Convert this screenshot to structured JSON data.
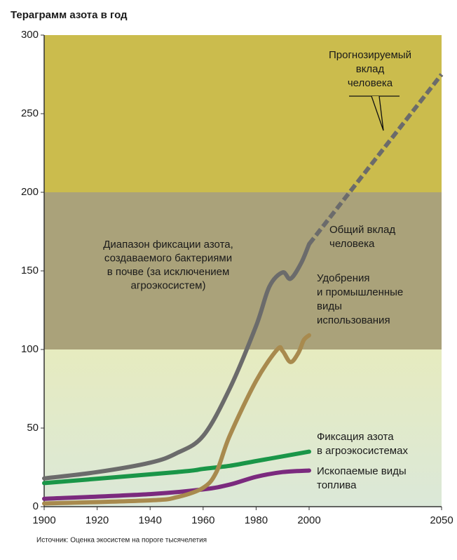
{
  "chart_data": {
    "type": "line",
    "title": "Тераграмм азота в год",
    "source": "Источник: Оценка экосистем на пороге тысячелетия",
    "xlim": [
      1900,
      2050
    ],
    "xticks": [
      1900,
      1920,
      1940,
      1960,
      1980,
      2000,
      2050
    ],
    "ylim": [
      0,
      300
    ],
    "yticks": [
      0,
      50,
      100,
      150,
      200,
      250,
      300
    ],
    "band": {
      "label": [
        "Диапазон фиксации азота,",
        "создаваемого бактериями",
        "в почве (за исключением",
        "агроэкосистем)"
      ],
      "range": [
        100,
        200
      ],
      "color": "#aaa27a"
    },
    "series": [
      {
        "name": [
          "Общий вклад",
          "человека"
        ],
        "color": "#6b6b6b",
        "x": [
          1900,
          1920,
          1940,
          1950,
          1960,
          1970,
          1980,
          1985,
          1990,
          1993,
          1997,
          2000
        ],
        "values": [
          18,
          22,
          28,
          34,
          45,
          75,
          115,
          140,
          149,
          145,
          155,
          167
        ]
      },
      {
        "name": [
          "Прогнозируемый",
          "вклад",
          "человека"
        ],
        "color": "#6b6b6b",
        "dashed": true,
        "x": [
          2000,
          2050
        ],
        "values": [
          167,
          275
        ]
      },
      {
        "name": [
          "Удобрения",
          "и промышленные",
          "виды",
          "использования"
        ],
        "color": "#a88a4e",
        "x": [
          1900,
          1940,
          1950,
          1960,
          1965,
          1970,
          1980,
          1988,
          1990,
          1993,
          1996,
          1998,
          2000
        ],
        "values": [
          2,
          4,
          6,
          12,
          22,
          45,
          80,
          100,
          99,
          92,
          98,
          106,
          109
        ]
      },
      {
        "name": [
          "Фиксация азота",
          "в агроэкосистемах"
        ],
        "color": "#1a9648",
        "x": [
          1900,
          1950,
          1960,
          1970,
          1980,
          1990,
          2000
        ],
        "values": [
          15,
          22,
          24,
          26,
          29,
          32,
          35
        ]
      },
      {
        "name": [
          "Ископаемые виды",
          "топлива"
        ],
        "color": "#7b2a7e",
        "x": [
          1900,
          1940,
          1960,
          1970,
          1980,
          1990,
          2000
        ],
        "values": [
          5,
          8,
          11,
          14,
          19,
          22,
          23
        ]
      }
    ]
  }
}
